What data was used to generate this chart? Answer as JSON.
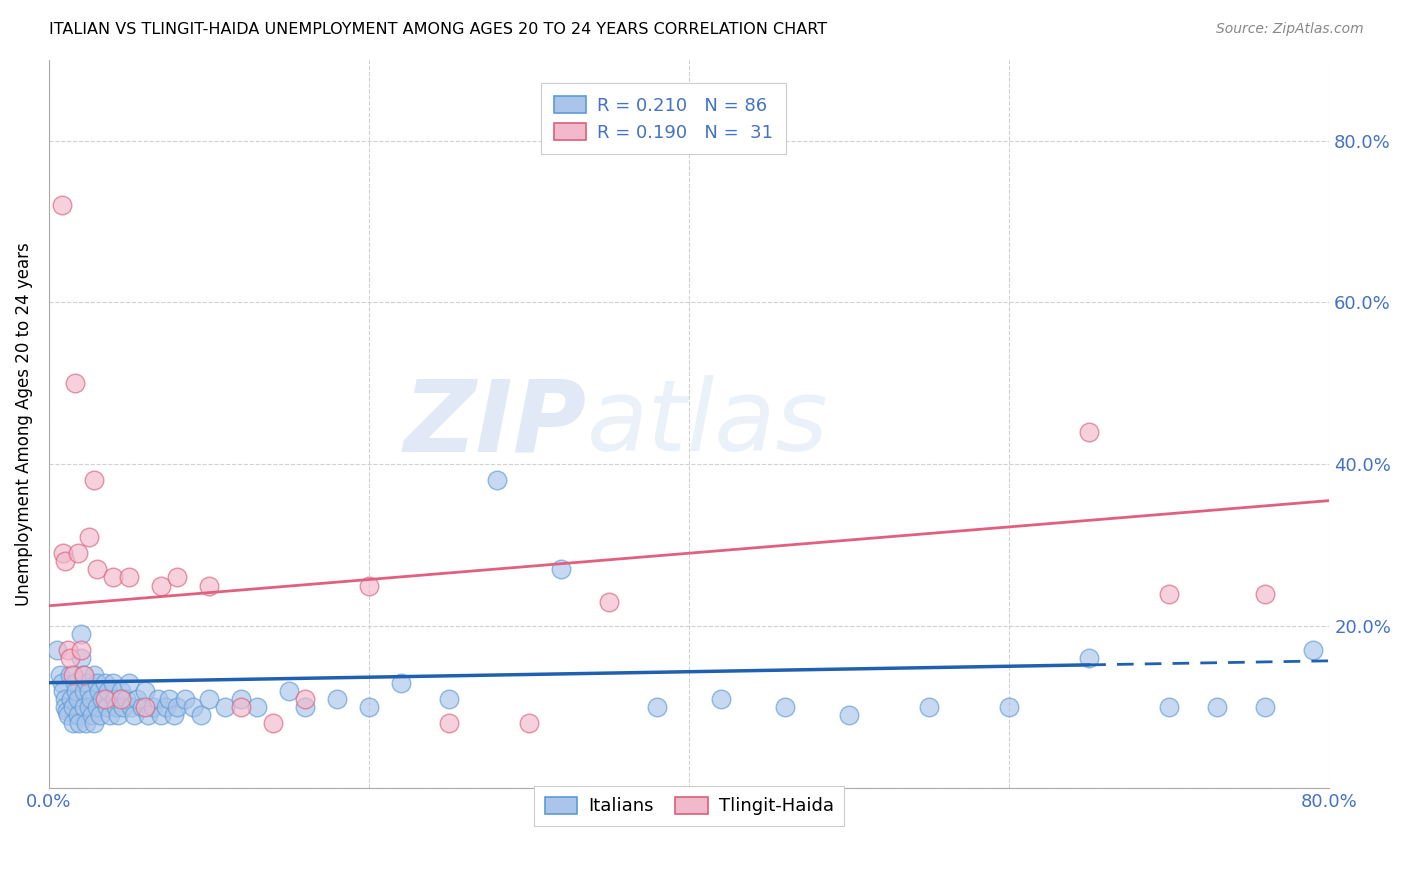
{
  "title": "ITALIAN VS TLINGIT-HAIDA UNEMPLOYMENT AMONG AGES 20 TO 24 YEARS CORRELATION CHART",
  "source": "Source: ZipAtlas.com",
  "ylabel": "Unemployment Among Ages 20 to 24 years",
  "xlim": [
    0.0,
    0.8
  ],
  "ylim": [
    0.0,
    0.9
  ],
  "italians_color": "#aac4ea",
  "italians_edge_color": "#5b9bd5",
  "tlingit_color": "#f2b8cc",
  "tlingit_edge_color": "#d9607a",
  "trend_italian_color": "#2060b0",
  "trend_tlingit_color": "#e06080",
  "background_color": "#ffffff",
  "grid_color": "#cccccc",
  "legend_text_color": "#4472c4",
  "italians_x": [
    0.005,
    0.007,
    0.008,
    0.009,
    0.01,
    0.01,
    0.011,
    0.012,
    0.013,
    0.014,
    0.015,
    0.015,
    0.016,
    0.017,
    0.018,
    0.018,
    0.019,
    0.02,
    0.02,
    0.021,
    0.022,
    0.022,
    0.023,
    0.024,
    0.025,
    0.025,
    0.026,
    0.027,
    0.028,
    0.028,
    0.03,
    0.03,
    0.031,
    0.032,
    0.033,
    0.035,
    0.036,
    0.037,
    0.038,
    0.04,
    0.041,
    0.042,
    0.043,
    0.045,
    0.046,
    0.048,
    0.05,
    0.051,
    0.053,
    0.055,
    0.058,
    0.06,
    0.062,
    0.065,
    0.068,
    0.07,
    0.073,
    0.075,
    0.078,
    0.08,
    0.085,
    0.09,
    0.095,
    0.1,
    0.11,
    0.12,
    0.13,
    0.15,
    0.16,
    0.18,
    0.2,
    0.22,
    0.25,
    0.28,
    0.32,
    0.38,
    0.42,
    0.46,
    0.5,
    0.55,
    0.6,
    0.65,
    0.7,
    0.73,
    0.76,
    0.79
  ],
  "italians_y": [
    0.17,
    0.14,
    0.13,
    0.12,
    0.11,
    0.1,
    0.095,
    0.09,
    0.14,
    0.11,
    0.1,
    0.08,
    0.13,
    0.12,
    0.11,
    0.09,
    0.08,
    0.19,
    0.16,
    0.14,
    0.12,
    0.1,
    0.08,
    0.13,
    0.12,
    0.1,
    0.11,
    0.09,
    0.14,
    0.08,
    0.13,
    0.1,
    0.12,
    0.09,
    0.11,
    0.13,
    0.1,
    0.12,
    0.09,
    0.13,
    0.11,
    0.1,
    0.09,
    0.12,
    0.1,
    0.11,
    0.13,
    0.1,
    0.09,
    0.11,
    0.1,
    0.12,
    0.09,
    0.1,
    0.11,
    0.09,
    0.1,
    0.11,
    0.09,
    0.1,
    0.11,
    0.1,
    0.09,
    0.11,
    0.1,
    0.11,
    0.1,
    0.12,
    0.1,
    0.11,
    0.1,
    0.13,
    0.11,
    0.38,
    0.27,
    0.1,
    0.11,
    0.1,
    0.09,
    0.1,
    0.1,
    0.16,
    0.1,
    0.1,
    0.1,
    0.17
  ],
  "tlingit_x": [
    0.008,
    0.009,
    0.01,
    0.012,
    0.013,
    0.015,
    0.016,
    0.018,
    0.02,
    0.022,
    0.025,
    0.028,
    0.03,
    0.035,
    0.04,
    0.045,
    0.05,
    0.06,
    0.07,
    0.08,
    0.1,
    0.12,
    0.14,
    0.16,
    0.2,
    0.25,
    0.3,
    0.35,
    0.65,
    0.7,
    0.76
  ],
  "tlingit_y": [
    0.72,
    0.29,
    0.28,
    0.17,
    0.16,
    0.14,
    0.5,
    0.29,
    0.17,
    0.14,
    0.31,
    0.38,
    0.27,
    0.11,
    0.26,
    0.11,
    0.26,
    0.1,
    0.25,
    0.26,
    0.25,
    0.1,
    0.08,
    0.11,
    0.25,
    0.08,
    0.08,
    0.23,
    0.44,
    0.24,
    0.24
  ],
  "italian_trend_x0": 0.0,
  "italian_trend_y0": 0.13,
  "italian_trend_x1": 0.65,
  "italian_trend_y1": 0.152,
  "italian_trend_dash_x0": 0.65,
  "italian_trend_dash_y0": 0.152,
  "italian_trend_dash_x1": 0.8,
  "italian_trend_dash_y1": 0.157,
  "tlingit_trend_x0": 0.0,
  "tlingit_trend_y0": 0.225,
  "tlingit_trend_x1": 0.8,
  "tlingit_trend_y1": 0.355
}
